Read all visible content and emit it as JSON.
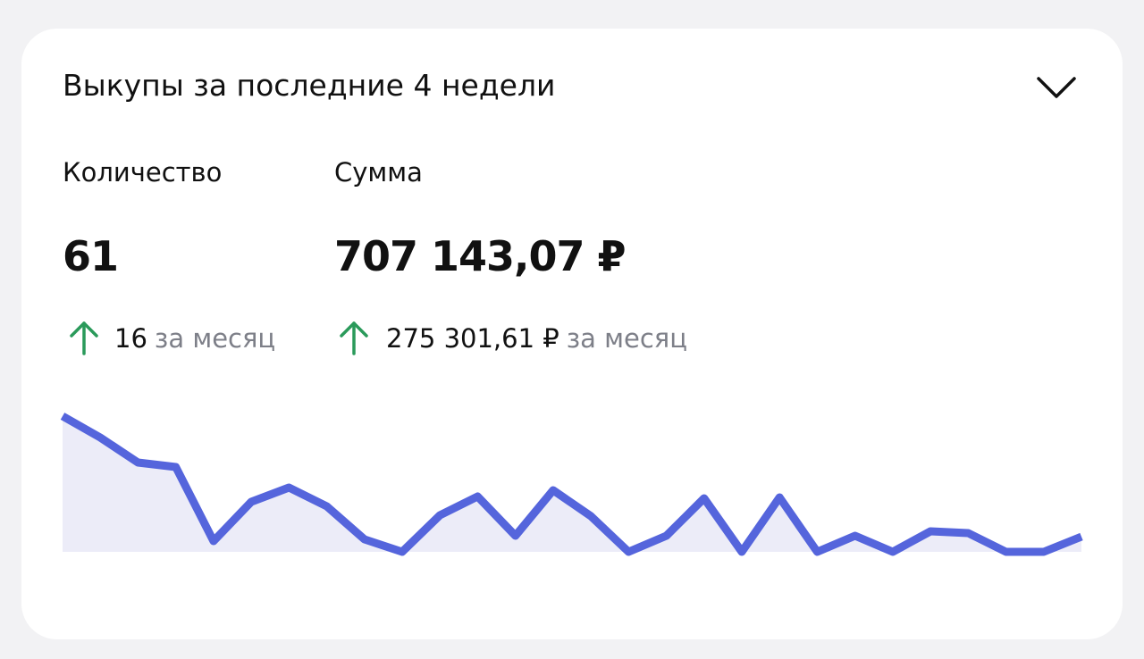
{
  "header": {
    "title": "Выкупы за последние 4 недели"
  },
  "metrics": [
    {
      "label": "Количество",
      "value": "61",
      "change": "16",
      "change_suffix": "за месяц"
    },
    {
      "label": "Сумма",
      "value": "707 143,07 ₽",
      "change": "275 301,61 ₽",
      "change_suffix": "за месяц"
    }
  ],
  "chart_data": {
    "type": "area",
    "color": "#5565dc",
    "fill": "#ececf8",
    "values": [
      152,
      128,
      100,
      95,
      12,
      56,
      72,
      51,
      14,
      0,
      41,
      62,
      18,
      69,
      40,
      0,
      18,
      60,
      0,
      61,
      0,
      18,
      0,
      23,
      21,
      0,
      0,
      17
    ],
    "ylim": [
      0,
      152
    ]
  }
}
